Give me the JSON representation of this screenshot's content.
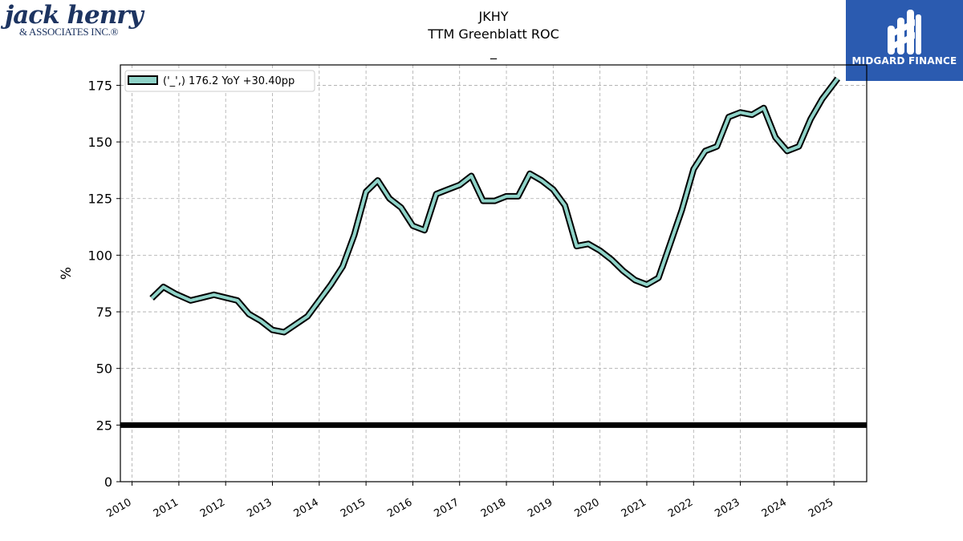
{
  "header": {
    "logo_left_main": "jack henry",
    "logo_left_sub": "& ASSOCIATES INC.®",
    "logo_right_text": "MIDGARD FINANCE",
    "title_line1": "JKHY",
    "title_line2": "TTM Greenblatt ROC",
    "title_line3": "_"
  },
  "colors": {
    "series_fill": "#8fd3c8",
    "series_outline": "#000000",
    "reference_line": "#000000",
    "brand_blue": "#2b5bb0",
    "logo_navy": "#1d3461"
  },
  "chart_data": {
    "type": "line",
    "title": "TTM Greenblatt ROC",
    "xlabel": "",
    "ylabel": "%",
    "xlim": [
      2009.75,
      2025.7
    ],
    "ylim": [
      0,
      184
    ],
    "yticks": [
      0,
      25,
      50,
      75,
      100,
      125,
      150,
      175
    ],
    "xticks": [
      2010,
      2011,
      2012,
      2013,
      2014,
      2015,
      2016,
      2017,
      2018,
      2019,
      2020,
      2021,
      2022,
      2023,
      2024,
      2025
    ],
    "grid": true,
    "legend_position": "top-left",
    "reference_line": {
      "y": 25
    },
    "series": [
      {
        "name": "('_',) 176.2 YoY +30.40pp",
        "x": [
          2010.42,
          2010.67,
          2010.92,
          2011.25,
          2011.75,
          2012.25,
          2012.5,
          2012.75,
          2013.0,
          2013.25,
          2013.75,
          2014.0,
          2014.25,
          2014.5,
          2014.75,
          2015.0,
          2015.25,
          2015.5,
          2015.75,
          2016.0,
          2016.25,
          2016.5,
          2016.75,
          2017.0,
          2017.25,
          2017.5,
          2017.75,
          2018.0,
          2018.25,
          2018.5,
          2018.75,
          2019.0,
          2019.25,
          2019.5,
          2019.75,
          2020.0,
          2020.25,
          2020.5,
          2020.75,
          2021.0,
          2021.25,
          2021.5,
          2021.75,
          2022.0,
          2022.25,
          2022.5,
          2022.75,
          2023.0,
          2023.25,
          2023.5,
          2023.75,
          2024.0,
          2024.25,
          2024.5,
          2024.75,
          2025.08
        ],
        "y": [
          81,
          86,
          83,
          80,
          82.5,
          80,
          74,
          71,
          67,
          66,
          73,
          80,
          87,
          95,
          109,
          128,
          133,
          125,
          121,
          113,
          111,
          127,
          129,
          131,
          135,
          124,
          124,
          126,
          126,
          136,
          133,
          129,
          122,
          104,
          105,
          102,
          98,
          93,
          89,
          87,
          90,
          105,
          120,
          138,
          146,
          148,
          161,
          163,
          162,
          165,
          152,
          146,
          148,
          160,
          169,
          178
        ]
      }
    ]
  }
}
